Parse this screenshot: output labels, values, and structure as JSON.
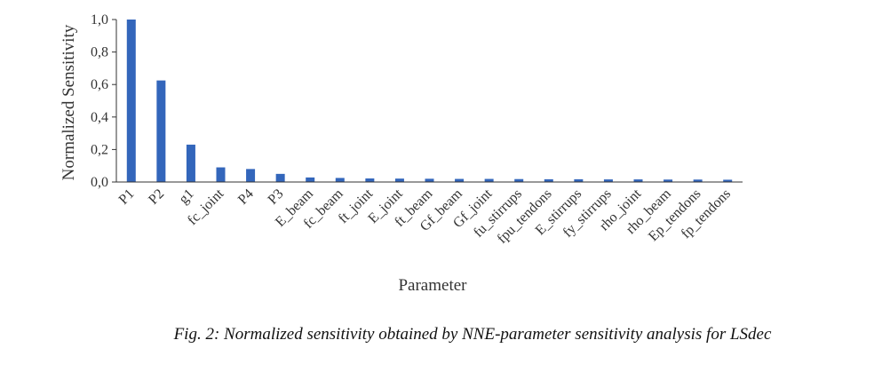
{
  "chart_data": {
    "type": "bar",
    "title": "",
    "xlabel": "Parameter",
    "ylabel": "Normalized Sensitivity",
    "ylim": [
      0,
      1.0
    ],
    "yticks": [
      "0,0",
      "0,2",
      "0,4",
      "0,6",
      "0,8",
      "1,0"
    ],
    "grid": false,
    "legend": "none",
    "bar_color": "#3366bb",
    "categories": [
      "P1",
      "P2",
      "g1",
      "fc_joint",
      "P4",
      "P3",
      "E_beam",
      "fc_beam",
      "ft_joint",
      "E_joint",
      "ft_beam",
      "Gf_beam",
      "Gf_joint",
      "fu_stirrups",
      "fpu_tendons",
      "E_stirrups",
      "fy_stirrups",
      "rho_joint",
      "rho_beam",
      "Ep_tendons",
      "fp_tendons"
    ],
    "values": [
      1.0,
      0.625,
      0.23,
      0.09,
      0.08,
      0.05,
      0.028,
      0.025,
      0.022,
      0.021,
      0.02,
      0.019,
      0.019,
      0.018,
      0.017,
      0.017,
      0.016,
      0.016,
      0.015,
      0.015,
      0.014
    ]
  },
  "caption": "Fig. 2: Normalized sensitivity obtained by NNE-parameter sensitivity analysis for LSdec"
}
